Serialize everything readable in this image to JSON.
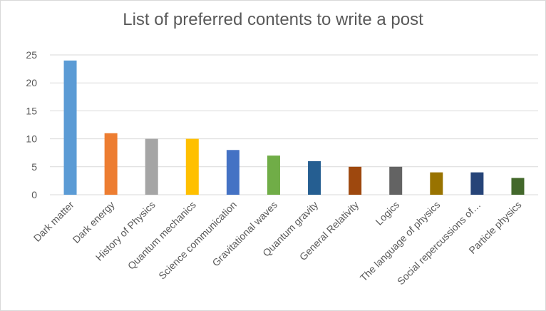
{
  "chart_data": {
    "type": "bar",
    "title": "List of preferred contents to write a post",
    "xlabel": "",
    "ylabel": "",
    "ylim": [
      0,
      25
    ],
    "yticks": [
      0,
      5,
      10,
      15,
      20,
      25
    ],
    "grid": true,
    "categories": [
      "Dark matter",
      "Dark energy",
      "History of Physics",
      "Quantum mechanics",
      "Science communication",
      "Gravitational waves",
      "Quantum gravity",
      "General Relativity",
      "Logics",
      "The language of physics",
      "Social repercussions of…",
      "Particle physics"
    ],
    "values": [
      24,
      11,
      10,
      10,
      8,
      7,
      6,
      5,
      5,
      4,
      4,
      3
    ],
    "colors": [
      "#5b9bd5",
      "#ed7d31",
      "#a5a5a5",
      "#ffc000",
      "#4472c4",
      "#70ad47",
      "#255e91",
      "#9e480e",
      "#636363",
      "#997300",
      "#264478",
      "#43682b"
    ]
  }
}
